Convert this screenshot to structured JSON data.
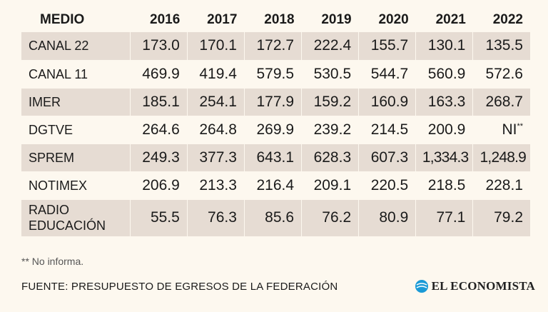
{
  "chart_data": {
    "type": "table",
    "columns": [
      "MEDIO",
      "2016",
      "2017",
      "2018",
      "2019",
      "2020",
      "2021",
      "2022"
    ],
    "rows": [
      {
        "label": [
          "CANAL 22"
        ],
        "values": [
          "173.0",
          "170.1",
          "172.7",
          "222.4",
          "155.7",
          "130.1",
          "135.5"
        ]
      },
      {
        "label": [
          "CANAL 11"
        ],
        "values": [
          "469.9",
          "419.4",
          "579.5",
          "530.5",
          "544.7",
          "560.9",
          "572.6"
        ]
      },
      {
        "label": [
          "IMER"
        ],
        "values": [
          "185.1",
          "254.1",
          "177.9",
          "159.2",
          "160.9",
          "163.3",
          "268.7"
        ]
      },
      {
        "label": [
          "DGTVE"
        ],
        "values": [
          "264.6",
          "264.8",
          "269.9",
          "239.2",
          "214.5",
          "200.9",
          "NI**"
        ]
      },
      {
        "label": [
          "SPREM"
        ],
        "values": [
          "249.3",
          "377.3",
          "643.1",
          "628.3",
          "607.3",
          "1,334.3",
          "1,248.9"
        ]
      },
      {
        "label": [
          "NOTIMEX"
        ],
        "values": [
          "206.9",
          "213.3",
          "216.4",
          "209.1",
          "220.5",
          "218.5",
          "228.1"
        ]
      },
      {
        "label": [
          "RADIO",
          "EDUCACIÓN"
        ],
        "values": [
          "55.5",
          "76.3",
          "85.6",
          "76.2",
          "80.9",
          "77.1",
          "79.2"
        ]
      }
    ]
  },
  "footer": {
    "note": "** No informa.",
    "source": "FUENTE: PRESUPUESTO DE EGRESOS DE LA FEDERACIÓN",
    "brand": "EL ECONOMISTA",
    "brand_icon": "el-economista-logo-icon",
    "brand_color": "#1a9ad6"
  },
  "colors": {
    "background": "#fdf8ef",
    "band": "#e6dcd3",
    "text": "#1a1a1a"
  }
}
